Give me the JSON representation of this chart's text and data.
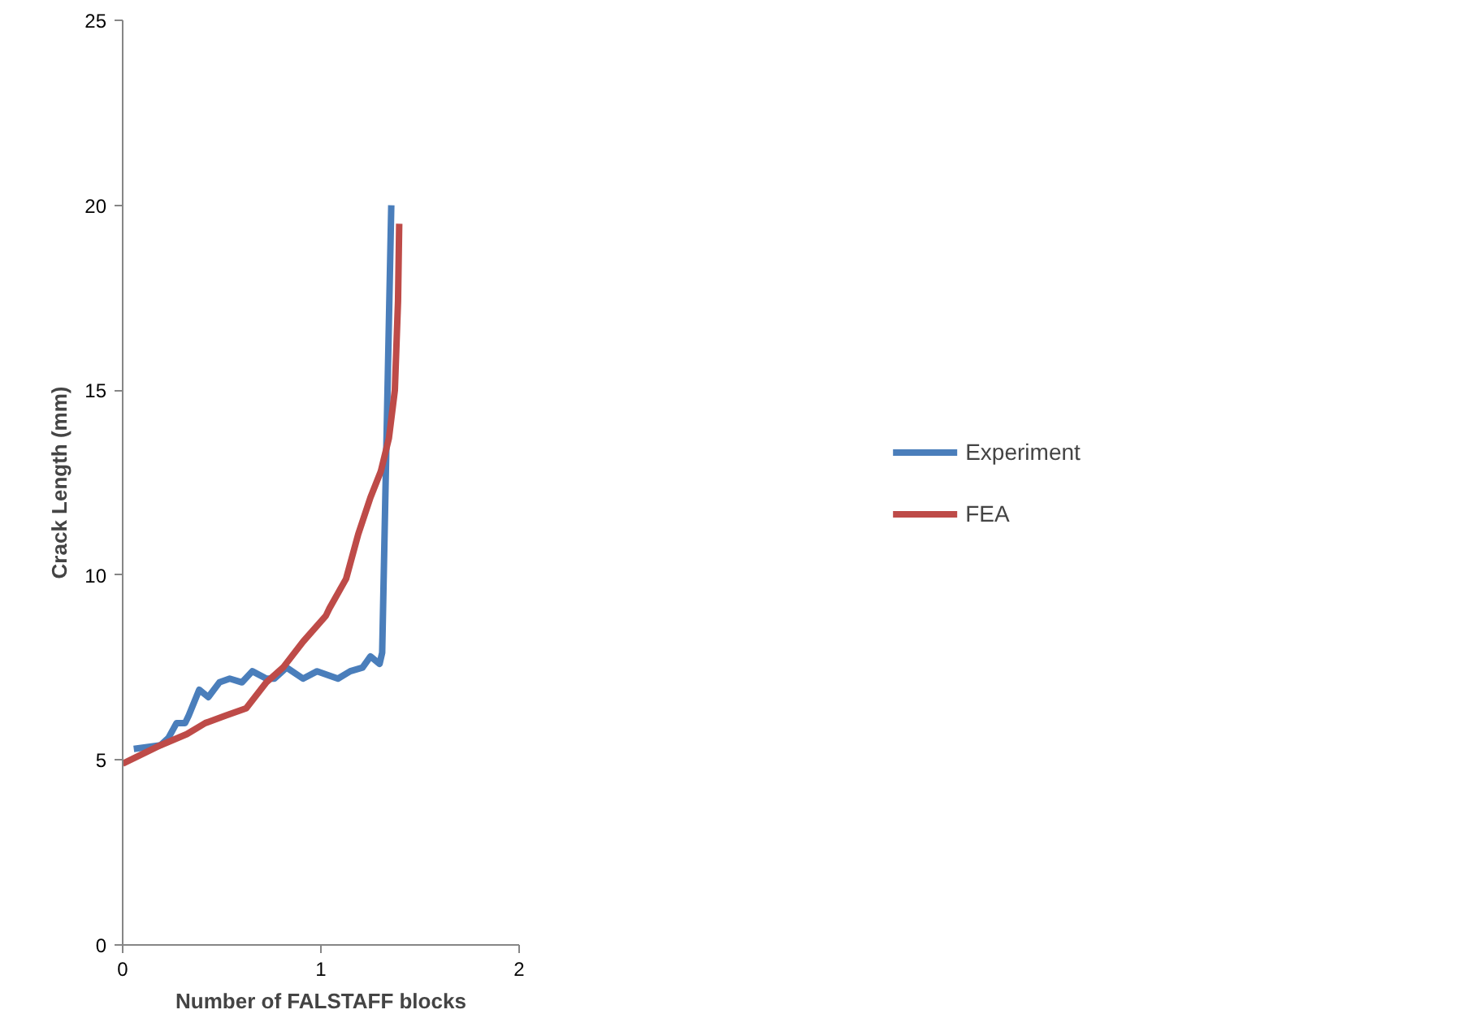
{
  "chart_data": {
    "type": "line",
    "xlabel": "Number of FALSTAFF blocks",
    "ylabel": "Crack Length (mm)",
    "xlim": [
      0,
      2
    ],
    "xticks": [
      0,
      1,
      2
    ],
    "ylim": [
      0,
      25
    ],
    "yticks": [
      0,
      5,
      10,
      15,
      20,
      25
    ],
    "grid": false,
    "legend": "right",
    "marker": "none",
    "line_style": "solid",
    "series": [
      {
        "name": "Experiment",
        "color": "#4a7ebb",
        "x": [
          0.056,
          0.191,
          0.231,
          0.272,
          0.315,
          0.333,
          0.386,
          0.432,
          0.488,
          0.54,
          0.602,
          0.654,
          0.725,
          0.765,
          0.827,
          0.91,
          0.981,
          1.086,
          1.148,
          1.21,
          1.25,
          1.296,
          1.309,
          1.355
        ],
        "values": [
          5.3,
          5.4,
          5.6,
          6.0,
          6.0,
          6.2,
          6.9,
          6.7,
          7.1,
          7.2,
          7.1,
          7.4,
          7.2,
          7.2,
          7.5,
          7.2,
          7.4,
          7.2,
          7.4,
          7.5,
          7.8,
          7.6,
          7.9,
          20.0
        ]
      },
      {
        "name": "FEA",
        "color": "#be4b48",
        "x": [
          0,
          0.191,
          0.324,
          0.417,
          0.519,
          0.623,
          0.725,
          0.809,
          0.91,
          1.025,
          1.043,
          1.127,
          1.188,
          1.25,
          1.302,
          1.343,
          1.373,
          1.389,
          1.395
        ],
        "values": [
          4.9,
          5.4,
          5.7,
          6.0,
          6.2,
          6.4,
          7.1,
          7.5,
          8.2,
          8.9,
          9.1,
          9.9,
          11.1,
          12.1,
          12.8,
          13.7,
          15.0,
          17.4,
          19.5
        ]
      }
    ]
  }
}
